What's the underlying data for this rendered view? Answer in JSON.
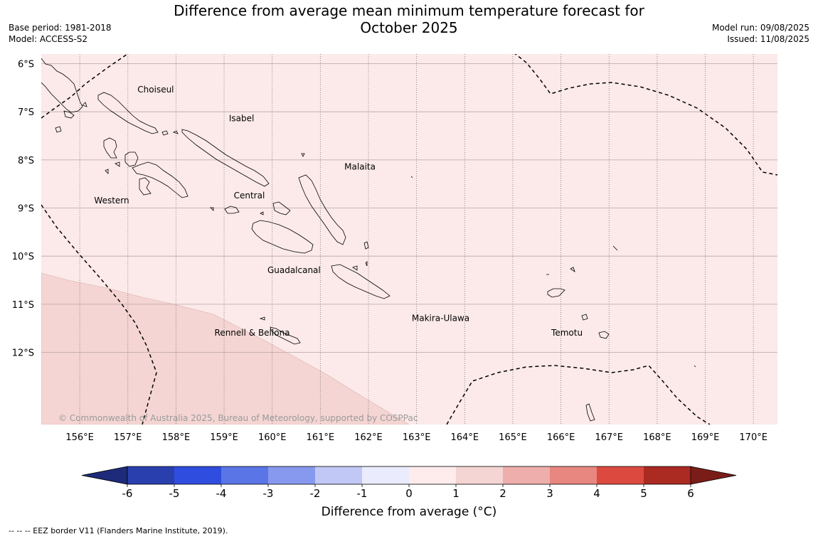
{
  "header": {
    "title_line1": "Difference from average mean minimum temperature forecast for",
    "title_line2": "October 2025",
    "base_period": "Base period: 1981-2018",
    "model": "Model: ACCESS-S2",
    "model_run": "Model run: 09/08/2025",
    "issued": "Issued: 11/08/2025"
  },
  "map": {
    "lat_labels": [
      "6°S",
      "7°S",
      "8°S",
      "9°S",
      "10°S",
      "11°S",
      "12°S"
    ],
    "lat_values": [
      -6,
      -7,
      -8,
      -9,
      -10,
      -11,
      -12
    ],
    "lon_labels": [
      "156°E",
      "157°E",
      "158°E",
      "159°E",
      "160°E",
      "161°E",
      "162°E",
      "163°E",
      "164°E",
      "165°E",
      "166°E",
      "167°E",
      "168°E",
      "169°E",
      "170°E"
    ],
    "lon_values": [
      156,
      157,
      158,
      159,
      160,
      161,
      162,
      163,
      164,
      165,
      166,
      167,
      168,
      169,
      170
    ],
    "lon_range": [
      155.2,
      170.5
    ],
    "lat_range": [
      -5.8,
      -13.5
    ],
    "regions": [
      {
        "name": "Choiseul",
        "lon": 157.2,
        "lat": -6.6
      },
      {
        "name": "Isabel",
        "lon": 159.1,
        "lat": -7.2
      },
      {
        "name": "Malaita",
        "lon": 161.5,
        "lat": -8.2
      },
      {
        "name": "Western",
        "lon": 156.3,
        "lat": -8.9
      },
      {
        "name": "Central",
        "lon": 159.2,
        "lat": -8.8
      },
      {
        "name": "Guadalcanal",
        "lon": 159.9,
        "lat": -10.35
      },
      {
        "name": "Makira-Ulawa",
        "lon": 162.9,
        "lat": -11.35
      },
      {
        "name": "Temotu",
        "lon": 165.8,
        "lat": -11.65
      },
      {
        "name": "Rennell & Bellona",
        "lon": 158.8,
        "lat": -11.65
      }
    ],
    "field_colors": {
      "class_0_1": "#fbeae9",
      "class_1_2": "#f4d5d3"
    },
    "copyright": "© Commonwealth of Australia 2025, Bureau of Meteorology, supported by COSPPac"
  },
  "colorbar": {
    "ticks": [
      "-6",
      "-5",
      "-4",
      "-3",
      "-2",
      "-1",
      "0",
      "1",
      "2",
      "3",
      "4",
      "5",
      "6"
    ],
    "colors": [
      "#2a3fae",
      "#2f4ddf",
      "#5a75e6",
      "#8799ee",
      "#c1c8f6",
      "#eaecfd",
      "#fdeceb",
      "#f4d5d3",
      "#eeaeab",
      "#e7877f",
      "#dc4a3f",
      "#ab2a22"
    ],
    "under_color": "#1d2b7a",
    "over_color": "#7a1d18",
    "label": "Difference from average (°C)"
  },
  "footnote": "--  --  -- EEZ border V11 (Flanders Marine Institute, 2019)."
}
